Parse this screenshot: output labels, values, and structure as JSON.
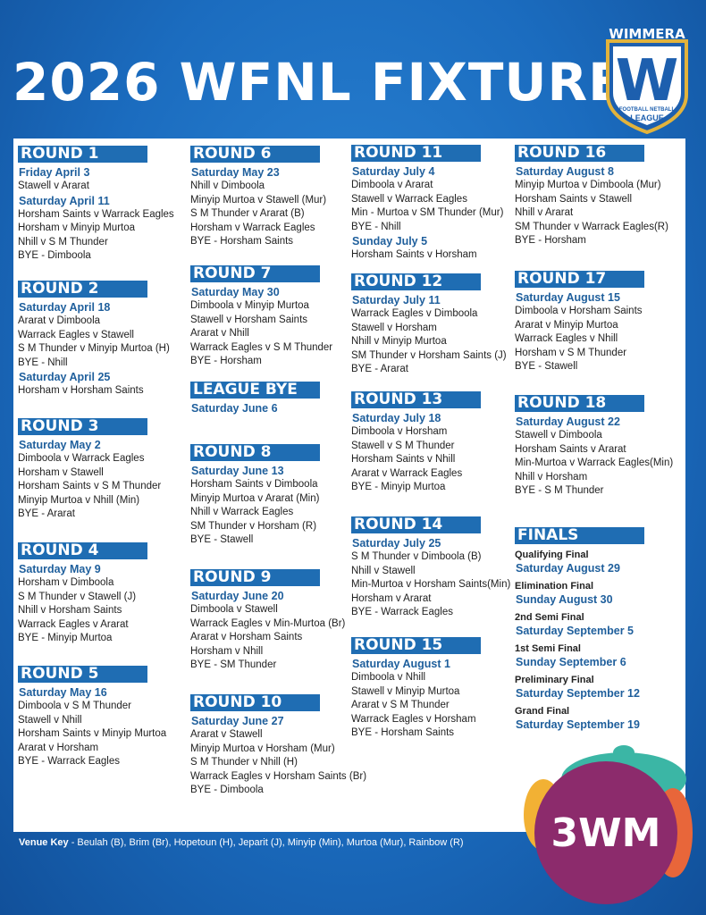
{
  "title": "2026 WFNL FIXTURE",
  "logo": {
    "top": "WIMMERA",
    "letter": "W",
    "sub": "FOOTBALL NETBALL",
    "bottom": "LEAGUE"
  },
  "colors": {
    "header_bar": "#1f6db3",
    "date_text": "#1f5f9c",
    "brand_circle": "#8c2b6c"
  },
  "columns": [
    [
      {
        "title": "ROUND 1",
        "lines": [
          [
            "d",
            "Friday April 3"
          ],
          [
            "m",
            "Stawell v Ararat"
          ],
          [
            "d",
            "Saturday April 11"
          ],
          [
            "m",
            "Horsham Saints v Warrack Eagles"
          ],
          [
            "m",
            "Horsham v Minyip Murtoa"
          ],
          [
            "m",
            "Nhill v S M Thunder"
          ],
          [
            "m",
            "BYE - Dimboola"
          ]
        ]
      },
      {
        "title": "ROUND 2",
        "lines": [
          [
            "d",
            "Saturday April 18"
          ],
          [
            "m",
            "Ararat v Dimboola"
          ],
          [
            "m",
            "Warrack Eagles v Stawell"
          ],
          [
            "m",
            "S M Thunder v Minyip Murtoa (H)"
          ],
          [
            "m",
            "BYE - Nhill"
          ],
          [
            "d",
            "Saturday April 25"
          ],
          [
            "m",
            "Horsham v Horsham Saints"
          ]
        ]
      },
      {
        "title": "ROUND 3",
        "lines": [
          [
            "d",
            "Saturday May 2"
          ],
          [
            "m",
            "Dimboola v Warrack Eagles"
          ],
          [
            "m",
            "Horsham v Stawell"
          ],
          [
            "m",
            "Horsham Saints v S M Thunder"
          ],
          [
            "m",
            "Minyip Murtoa v Nhill (Min)"
          ],
          [
            "m",
            "BYE - Ararat"
          ]
        ]
      },
      {
        "title": "ROUND 4",
        "lines": [
          [
            "d",
            "Saturday May 9"
          ],
          [
            "m",
            "Horsham v Dimboola"
          ],
          [
            "m",
            "S M Thunder v Stawell (J)"
          ],
          [
            "m",
            "Nhill v Horsham Saints"
          ],
          [
            "m",
            "Warrack Eagles v Ararat"
          ],
          [
            "m",
            "BYE - Minyip Murtoa"
          ]
        ]
      },
      {
        "title": "ROUND 5",
        "lines": [
          [
            "d",
            "Saturday May 16"
          ],
          [
            "m",
            "Dimboola v S M Thunder"
          ],
          [
            "m",
            "Stawell v Nhill"
          ],
          [
            "m",
            "Horsham Saints v Minyip Murtoa"
          ],
          [
            "m",
            "Ararat v Horsham"
          ],
          [
            "m",
            "BYE - Warrack Eagles"
          ]
        ]
      }
    ],
    [
      {
        "title": "ROUND 6",
        "lines": [
          [
            "d",
            "Saturday May 23"
          ],
          [
            "m",
            "Nhill v Dimboola"
          ],
          [
            "m",
            "Minyip Murtoa v Stawell (Mur)"
          ],
          [
            "m",
            "S M Thunder v Ararat (B)"
          ],
          [
            "m",
            "Horsham v Warrack Eagles"
          ],
          [
            "m",
            "BYE - Horsham Saints"
          ]
        ]
      },
      {
        "title": "ROUND 7",
        "lines": [
          [
            "d",
            "Saturday May 30"
          ],
          [
            "m",
            "Dimboola v Minyip Murtoa"
          ],
          [
            "m",
            "Stawell v Horsham Saints"
          ],
          [
            "m",
            "Ararat v Nhill"
          ],
          [
            "m",
            "Warrack Eagles v S M Thunder"
          ],
          [
            "m",
            "BYE - Horsham"
          ]
        ]
      },
      {
        "title": "LEAGUE BYE",
        "lines": [
          [
            "d",
            "Saturday June 6"
          ]
        ]
      },
      {
        "title": "ROUND 8",
        "lines": [
          [
            "d",
            "Saturday June 13"
          ],
          [
            "m",
            "Horsham Saints v Dimboola"
          ],
          [
            "m",
            "Minyip Murtoa v Ararat (Min)"
          ],
          [
            "m",
            "Nhill v Warrack Eagles"
          ],
          [
            "m",
            "SM Thunder v Horsham (R)"
          ],
          [
            "m",
            "BYE - Stawell"
          ]
        ]
      },
      {
        "title": "ROUND 9",
        "lines": [
          [
            "d",
            "Saturday June 20"
          ],
          [
            "m",
            "Dimboola v Stawell"
          ],
          [
            "m",
            "Warrack Eagles v Min-Murtoa (Br)"
          ],
          [
            "m",
            "Ararat v Horsham Saints"
          ],
          [
            "m",
            "Horsham v Nhill"
          ],
          [
            "m",
            "BYE - SM Thunder"
          ]
        ]
      },
      {
        "title": "ROUND 10",
        "lines": [
          [
            "d",
            "Saturday June 27"
          ],
          [
            "m",
            "Ararat v Stawell"
          ],
          [
            "m",
            "Minyip Murtoa v Horsham (Mur)"
          ],
          [
            "m",
            "S M Thunder v Nhill (H)"
          ],
          [
            "m",
            "Warrack Eagles v Horsham Saints (Br)"
          ],
          [
            "m",
            "BYE - Dimboola"
          ]
        ]
      }
    ],
    [
      {
        "title": "ROUND 11",
        "lines": [
          [
            "d",
            "Saturday July 4"
          ],
          [
            "m",
            "Dimboola v Ararat"
          ],
          [
            "m",
            "Stawell v Warrack Eagles"
          ],
          [
            "m",
            "Min - Murtoa v SM Thunder (Mur)"
          ],
          [
            "m",
            "BYE - Nhill"
          ],
          [
            "d",
            "Sunday July 5"
          ],
          [
            "m",
            "Horsham Saints v Horsham"
          ]
        ]
      },
      {
        "title": "ROUND 12",
        "lines": [
          [
            "d",
            "Saturday July 11"
          ],
          [
            "m",
            "Warrack Eagles v Dimboola"
          ],
          [
            "m",
            "Stawell v Horsham"
          ],
          [
            "m",
            "Nhill v Minyip Murtoa"
          ],
          [
            "m",
            "SM Thunder v Horsham Saints (J)"
          ],
          [
            "m",
            "BYE - Ararat"
          ]
        ]
      },
      {
        "title": "ROUND 13",
        "lines": [
          [
            "d",
            "Saturday July 18"
          ],
          [
            "m",
            "Dimboola v Horsham"
          ],
          [
            "m",
            "Stawell v S M Thunder"
          ],
          [
            "m",
            "Horsham Saints v Nhill"
          ],
          [
            "m",
            "Ararat v Warrack Eagles"
          ],
          [
            "m",
            "BYE - Minyip Murtoa"
          ]
        ]
      },
      {
        "title": "ROUND 14",
        "lines": [
          [
            "d",
            "Saturday July 25"
          ],
          [
            "m",
            "S M Thunder v Dimboola (B)"
          ],
          [
            "m",
            "Nhill v Stawell"
          ],
          [
            "m",
            "Min-Murtoa v Horsham Saints(Min)"
          ],
          [
            "m",
            "Horsham v Ararat"
          ],
          [
            "m",
            "BYE - Warrack Eagles"
          ]
        ]
      },
      {
        "title": "ROUND 15",
        "lines": [
          [
            "d",
            "Saturday August 1"
          ],
          [
            "m",
            "Dimboola v Nhill"
          ],
          [
            "m",
            "Stawell v Minyip Murtoa"
          ],
          [
            "m",
            "Ararat v S M Thunder"
          ],
          [
            "m",
            "Warrack Eagles v Horsham"
          ],
          [
            "m",
            "BYE - Horsham Saints"
          ]
        ]
      }
    ],
    [
      {
        "title": "ROUND 16",
        "lines": [
          [
            "d",
            "Saturday August 8"
          ],
          [
            "m",
            "Minyip Murtoa v Dimboola (Mur)"
          ],
          [
            "m",
            "Horsham Saints v Stawell"
          ],
          [
            "m",
            "Nhill v Ararat"
          ],
          [
            "m",
            "SM Thunder v Warrack Eagles(R)"
          ],
          [
            "m",
            "BYE - Horsham"
          ]
        ]
      },
      {
        "title": "ROUND 17",
        "lines": [
          [
            "d",
            "Saturday August 15"
          ],
          [
            "m",
            "Dimboola v Horsham Saints"
          ],
          [
            "m",
            "Ararat v Minyip Murtoa"
          ],
          [
            "m",
            "Warrack Eagles v Nhill"
          ],
          [
            "m",
            "Horsham v S M Thunder"
          ],
          [
            "m",
            "BYE - Stawell"
          ]
        ]
      },
      {
        "title": "ROUND 18",
        "lines": [
          [
            "d",
            "Saturday August 22"
          ],
          [
            "m",
            "Stawell v Dimboola"
          ],
          [
            "m",
            "Horsham Saints v Ararat"
          ],
          [
            "m",
            "Min-Murtoa v Warrack Eagles(Min)"
          ],
          [
            "m",
            "Nhill v Horsham"
          ],
          [
            "m",
            "BYE - S M Thunder"
          ]
        ]
      },
      {
        "title": "FINALS",
        "lines": [
          [
            "f",
            "Qualifying Final"
          ],
          [
            "d",
            "Saturday August 29"
          ],
          [
            "f",
            "Elimination Final"
          ],
          [
            "d",
            "Sunday August 30"
          ],
          [
            "f",
            "2nd Semi Final"
          ],
          [
            "d",
            "Saturday September 5"
          ],
          [
            "f",
            "1st Semi Final"
          ],
          [
            "d",
            "Sunday September 6"
          ],
          [
            "f",
            "Preliminary Final"
          ],
          [
            "d",
            "Saturday September 12"
          ],
          [
            "f",
            "Grand Final"
          ],
          [
            "d",
            "Saturday September 19"
          ]
        ]
      }
    ]
  ],
  "venue_key": {
    "label": "Venue Key",
    "text": " - Beulah (B), Brim (Br), Hopetoun (H), Jeparit (J), Minyip (Min), Murtoa (Mur), Rainbow (R)"
  },
  "brand": {
    "text": "3WM"
  }
}
